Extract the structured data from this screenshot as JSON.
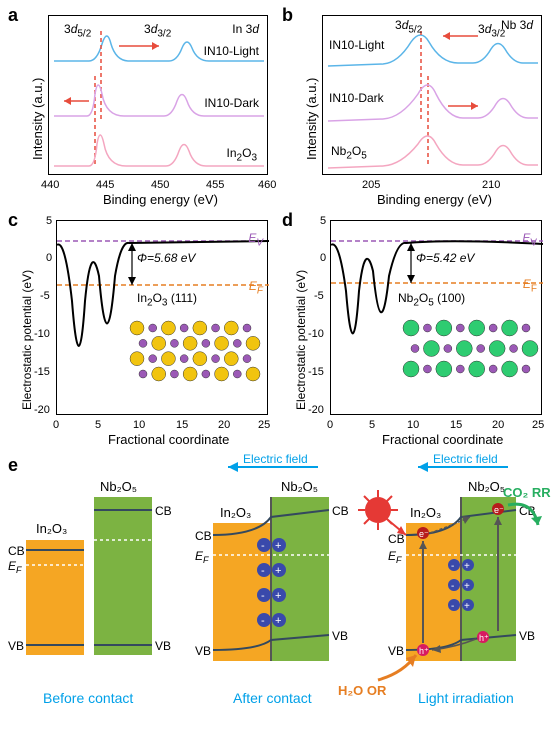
{
  "panel_a": {
    "label": "a",
    "title": "In 3d",
    "peak_labels": [
      "3d5/2",
      "3d3/2"
    ],
    "curves": [
      {
        "name": "IN10-Light",
        "color": "#5bb5e8"
      },
      {
        "name": "IN10-Dark",
        "color": "#d9a3e6"
      },
      {
        "name": "In2O3",
        "color": "#f4a6c0"
      }
    ],
    "x_label": "Binding energy (eV)",
    "y_label": "Intensity (a.u.)",
    "x_range": [
      440,
      460
    ],
    "x_ticks": [
      440,
      445,
      450,
      455,
      460
    ],
    "dash_colors": [
      "#e74c3c",
      "#e74c3c"
    ],
    "arrow_color": "#e74c3c"
  },
  "panel_b": {
    "label": "b",
    "title": "Nb 3d",
    "peak_labels": [
      "3d5/2",
      "3d3/2"
    ],
    "curves": [
      {
        "name": "IN10-Light",
        "color": "#5bb5e8"
      },
      {
        "name": "IN10-Dark",
        "color": "#d9a3e6"
      },
      {
        "name": "Nb2O5",
        "color": "#f4a6c0"
      }
    ],
    "x_label": "Binding energy (eV)",
    "y_label": "Intensity (a.u.)",
    "x_range": [
      203,
      212
    ],
    "x_ticks": [
      205,
      210
    ],
    "dash_colors": [
      "#e74c3c",
      "#e74c3c"
    ],
    "arrow_color": "#e74c3c"
  },
  "panel_c": {
    "label": "c",
    "phi": "Φ=5.68 eV",
    "material": "In2O3 (111)",
    "x_label": "Fractional coordinate",
    "y_label": "Electrostatic potential (eV)",
    "y_range": [
      -20,
      5
    ],
    "y_ticks": [
      -20,
      -15,
      -10,
      -5,
      0,
      5
    ],
    "x_range": [
      0,
      25
    ],
    "x_ticks": [
      0,
      5,
      10,
      15,
      20,
      25
    ],
    "ev_label": "EV",
    "ev_color": "#9b59b6",
    "ef_label": "EF",
    "ef_color": "#e67e22",
    "atom_colors": {
      "main": "#f1c40f",
      "secondary": "#9b59b6"
    }
  },
  "panel_d": {
    "label": "d",
    "phi": "Φ=5.42 eV",
    "material": "Nb2O5 (100)",
    "x_label": "Fractional coordinate",
    "y_label": "Electrostatic potential (eV)",
    "y_range": [
      -20,
      5
    ],
    "y_ticks": [
      -20,
      -15,
      -10,
      -5,
      0,
      5
    ],
    "x_range": [
      0,
      25
    ],
    "x_ticks": [
      0,
      5,
      10,
      15,
      20,
      25
    ],
    "ev_label": "EV",
    "ev_color": "#9b59b6",
    "ef_label": "EF",
    "ef_color": "#e67e22",
    "atom_colors": {
      "main": "#2ecc71",
      "secondary": "#9b59b6"
    }
  },
  "panel_e": {
    "label": "e",
    "captions": [
      "Before contact",
      "After contact",
      "Light irradiation"
    ],
    "caption_color": "#00a0e8",
    "ef_label": "Electric field",
    "materials": {
      "in2o3": {
        "name": "In2O3",
        "color": "#f5a623"
      },
      "nb2o5": {
        "name": "Nb2O5",
        "color": "#7cb342"
      }
    },
    "band_labels": {
      "cb": "CB",
      "vb": "VB",
      "ef": "EF"
    },
    "co2rr": "CO2 RR",
    "co2rr_color": "#27ae60",
    "h2o_or": "H2O OR",
    "h2o_color": "#e67e22",
    "sun_color": "#e53935",
    "electron_color": "#3949ab",
    "hole_color": "#d81b60"
  }
}
